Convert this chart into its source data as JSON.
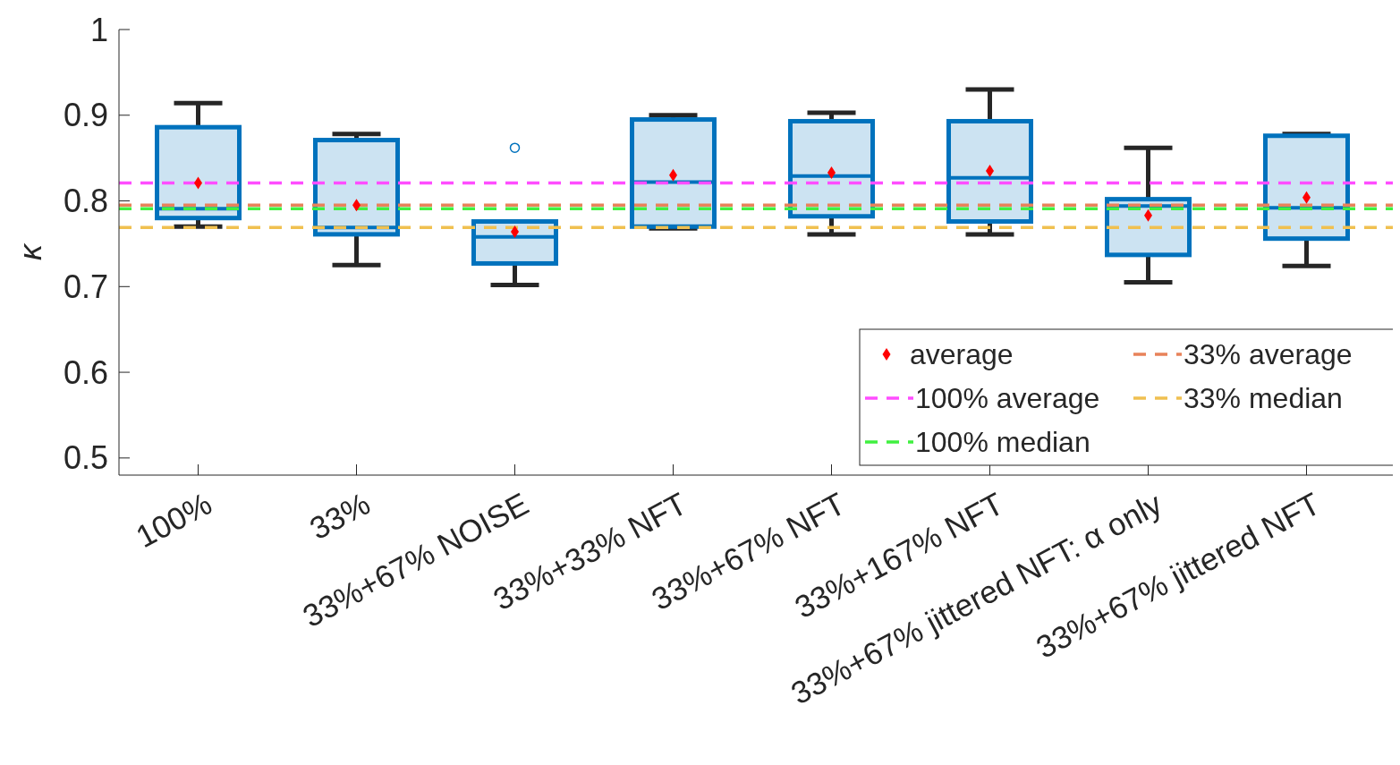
{
  "chart_data": {
    "type": "box",
    "ylabel": "κ",
    "categories": [
      "100%",
      "33%",
      "33%+67% NOISE",
      "33%+33% NFT",
      "33%+67% NFT",
      "33%+167% NFT",
      "33%+67% jittered NFT: α only",
      "33%+67% jittered NFT"
    ],
    "color": "#0072bd",
    "boxes": [
      {
        "low": 0.77,
        "q1": 0.78,
        "median": 0.791,
        "q3": 0.886,
        "high": 0.914
      },
      {
        "low": 0.725,
        "q1": 0.761,
        "median": 0.769,
        "q3": 0.871,
        "high": 0.878
      },
      {
        "low": 0.702,
        "q1": 0.727,
        "median": 0.758,
        "q3": 0.776,
        "high": 0.776,
        "outliers": [
          0.862
        ]
      },
      {
        "low": 0.768,
        "q1": 0.77,
        "median": 0.822,
        "q3": 0.895,
        "high": 0.9
      },
      {
        "low": 0.761,
        "q1": 0.782,
        "median": 0.829,
        "q3": 0.893,
        "high": 0.903
      },
      {
        "low": 0.761,
        "q1": 0.776,
        "median": 0.827,
        "q3": 0.893,
        "high": 0.93
      },
      {
        "low": 0.705,
        "q1": 0.737,
        "median": 0.794,
        "q3": 0.802,
        "high": 0.862
      },
      {
        "low": 0.724,
        "q1": 0.756,
        "median": 0.792,
        "q3": 0.876,
        "high": 0.878
      }
    ],
    "series": [
      {
        "type": "scatter",
        "name": "average",
        "color": "#ff0000",
        "marker": "diamond",
        "x": [
          "100%",
          "33%",
          "33%+67% NOISE",
          "33%+33% NFT",
          "33%+67% NFT",
          "33%+167% NFT",
          "33%+67% jittered NFT: α only",
          "33%+67% jittered NFT"
        ],
        "values": [
          0.821,
          0.795,
          0.764,
          0.83,
          0.833,
          0.835,
          0.783,
          0.804
        ]
      }
    ],
    "ref_lines": [
      {
        "axis": "y",
        "value": 0.795,
        "label": "33% average",
        "color": "#e8825a",
        "line_style": "dashed"
      },
      {
        "axis": "y",
        "value": 0.821,
        "label": "100% average",
        "color": "#ff4dff",
        "line_style": "dashed"
      },
      {
        "axis": "y",
        "value": 0.769,
        "label": "33% median",
        "color": "#f0c050",
        "line_style": "dashed"
      },
      {
        "axis": "y",
        "value": 0.791,
        "label": "100% median",
        "color": "#40f040",
        "line_style": "dashed"
      }
    ],
    "ylim": [
      0.48,
      1
    ],
    "yticks": [
      0.5,
      0.6,
      0.7,
      0.8,
      0.9,
      1
    ],
    "grid": false,
    "legend": "bottom right"
  }
}
